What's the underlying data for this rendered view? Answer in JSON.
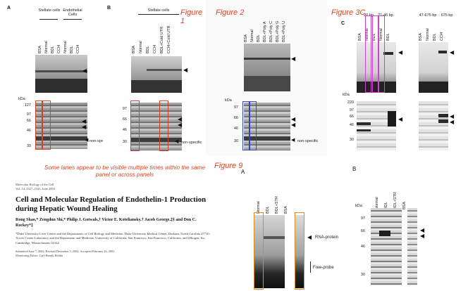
{
  "figure_titles": {
    "fig1": "Figure 1",
    "fig2": "Figure 2",
    "fig3c": "Figure 3C",
    "fig9": "Figure 9"
  },
  "panel_letters": {
    "a": "A",
    "b": "B",
    "c": "C",
    "f9a": "A",
    "f9b": "B"
  },
  "panelA": {
    "group1": "Stellate cells",
    "group2": "Endothelial Cells",
    "lanes": [
      "BSA",
      "Normal",
      "BDL",
      "CCl4",
      "Normal",
      "BDL",
      "CCl4"
    ],
    "kda_label": "kDa",
    "markers": [
      "127",
      "97",
      "66",
      "46",
      "30"
    ],
    "nonspecific": "non-specific"
  },
  "panelB": {
    "group": "Stellate cells",
    "lanes": [
      "BSA",
      "Normal",
      "BDL",
      "CCl4",
      "BDL+Cold UTR",
      "CCl4+Cold UTR"
    ],
    "markers": [
      "97",
      "66",
      "46",
      "30"
    ],
    "nonspecific": "non-specific"
  },
  "fig2": {
    "lanes": [
      "BSA",
      "Normal",
      "BDL",
      "BDL+Poly A",
      "BDL+Poly C",
      "BDL+Poly G",
      "BDL+Poly U"
    ],
    "kda_label": "kDa",
    "markers": [
      "97",
      "66",
      "46",
      "30"
    ],
    "nonspecific": "non-specific"
  },
  "fig3c": {
    "group1": "20 bp",
    "group2": "21-46 bp",
    "group3": "47-675 bp",
    "group4": "675 bp",
    "lanes_left": [
      "BSA",
      "Normal",
      "BDL",
      "Normal",
      "BDL"
    ],
    "lanes_right": [
      "BSA",
      "Normal",
      "BDL",
      "CCl4"
    ],
    "kda_label": "kDa",
    "markers": [
      "220",
      "97",
      "66",
      "46",
      "30"
    ]
  },
  "caption": "Some lanes appear to be visible multiple times within the same panel or across panels",
  "paper": {
    "journal_line1": "Molecular Biology of the Cell",
    "journal_line2": "Vol. 14, 2327–2341, June 2003",
    "title": "Cell and Molecular Regulation of Endothelin-1 Production during Hepatic Wound Healing",
    "authors": "Rong Shao,* Zengdun Shi,* Philip J. Gotwals,† Victor E. Koteliansky,† Jacob George,‡§ and Don C. Rockey*‡",
    "affiliation": "*Duke University Liver Center and the Departments of Cell Biology and Medicine, Duke University Medical Center, Durham, North Carolina 27710; †Liver Center Laboratory and the Department and Medicine, University of California, San Francisco, San Francisco, California; and ‡Biogen, Inc, Cambridge, Massachusetts 02142",
    "submitted": "Submitted June 7, 2002; Revised December 5, 2002; Accepted February 26, 2003",
    "editor": "Monitoring Editor: Carl-Henrik Heldin"
  },
  "fig9A": {
    "lanes": [
      "Normal",
      "BDL",
      "BDL+STR",
      "BSA"
    ],
    "rna_protein": "RNA-protein",
    "free_probe": "Free-probe"
  },
  "fig9B": {
    "lanes": [
      "Normal",
      "BDL",
      "BDL+STR",
      "BSA"
    ],
    "kda_label": "kDa",
    "markers": [
      "97",
      "66",
      "46",
      "30"
    ]
  },
  "colors": {
    "title_red": "#e0421f",
    "box_red": "#d2402a",
    "box_pink": "#cc44cc",
    "box_blue": "#3344cc",
    "box_orange": "#e08a1e"
  }
}
